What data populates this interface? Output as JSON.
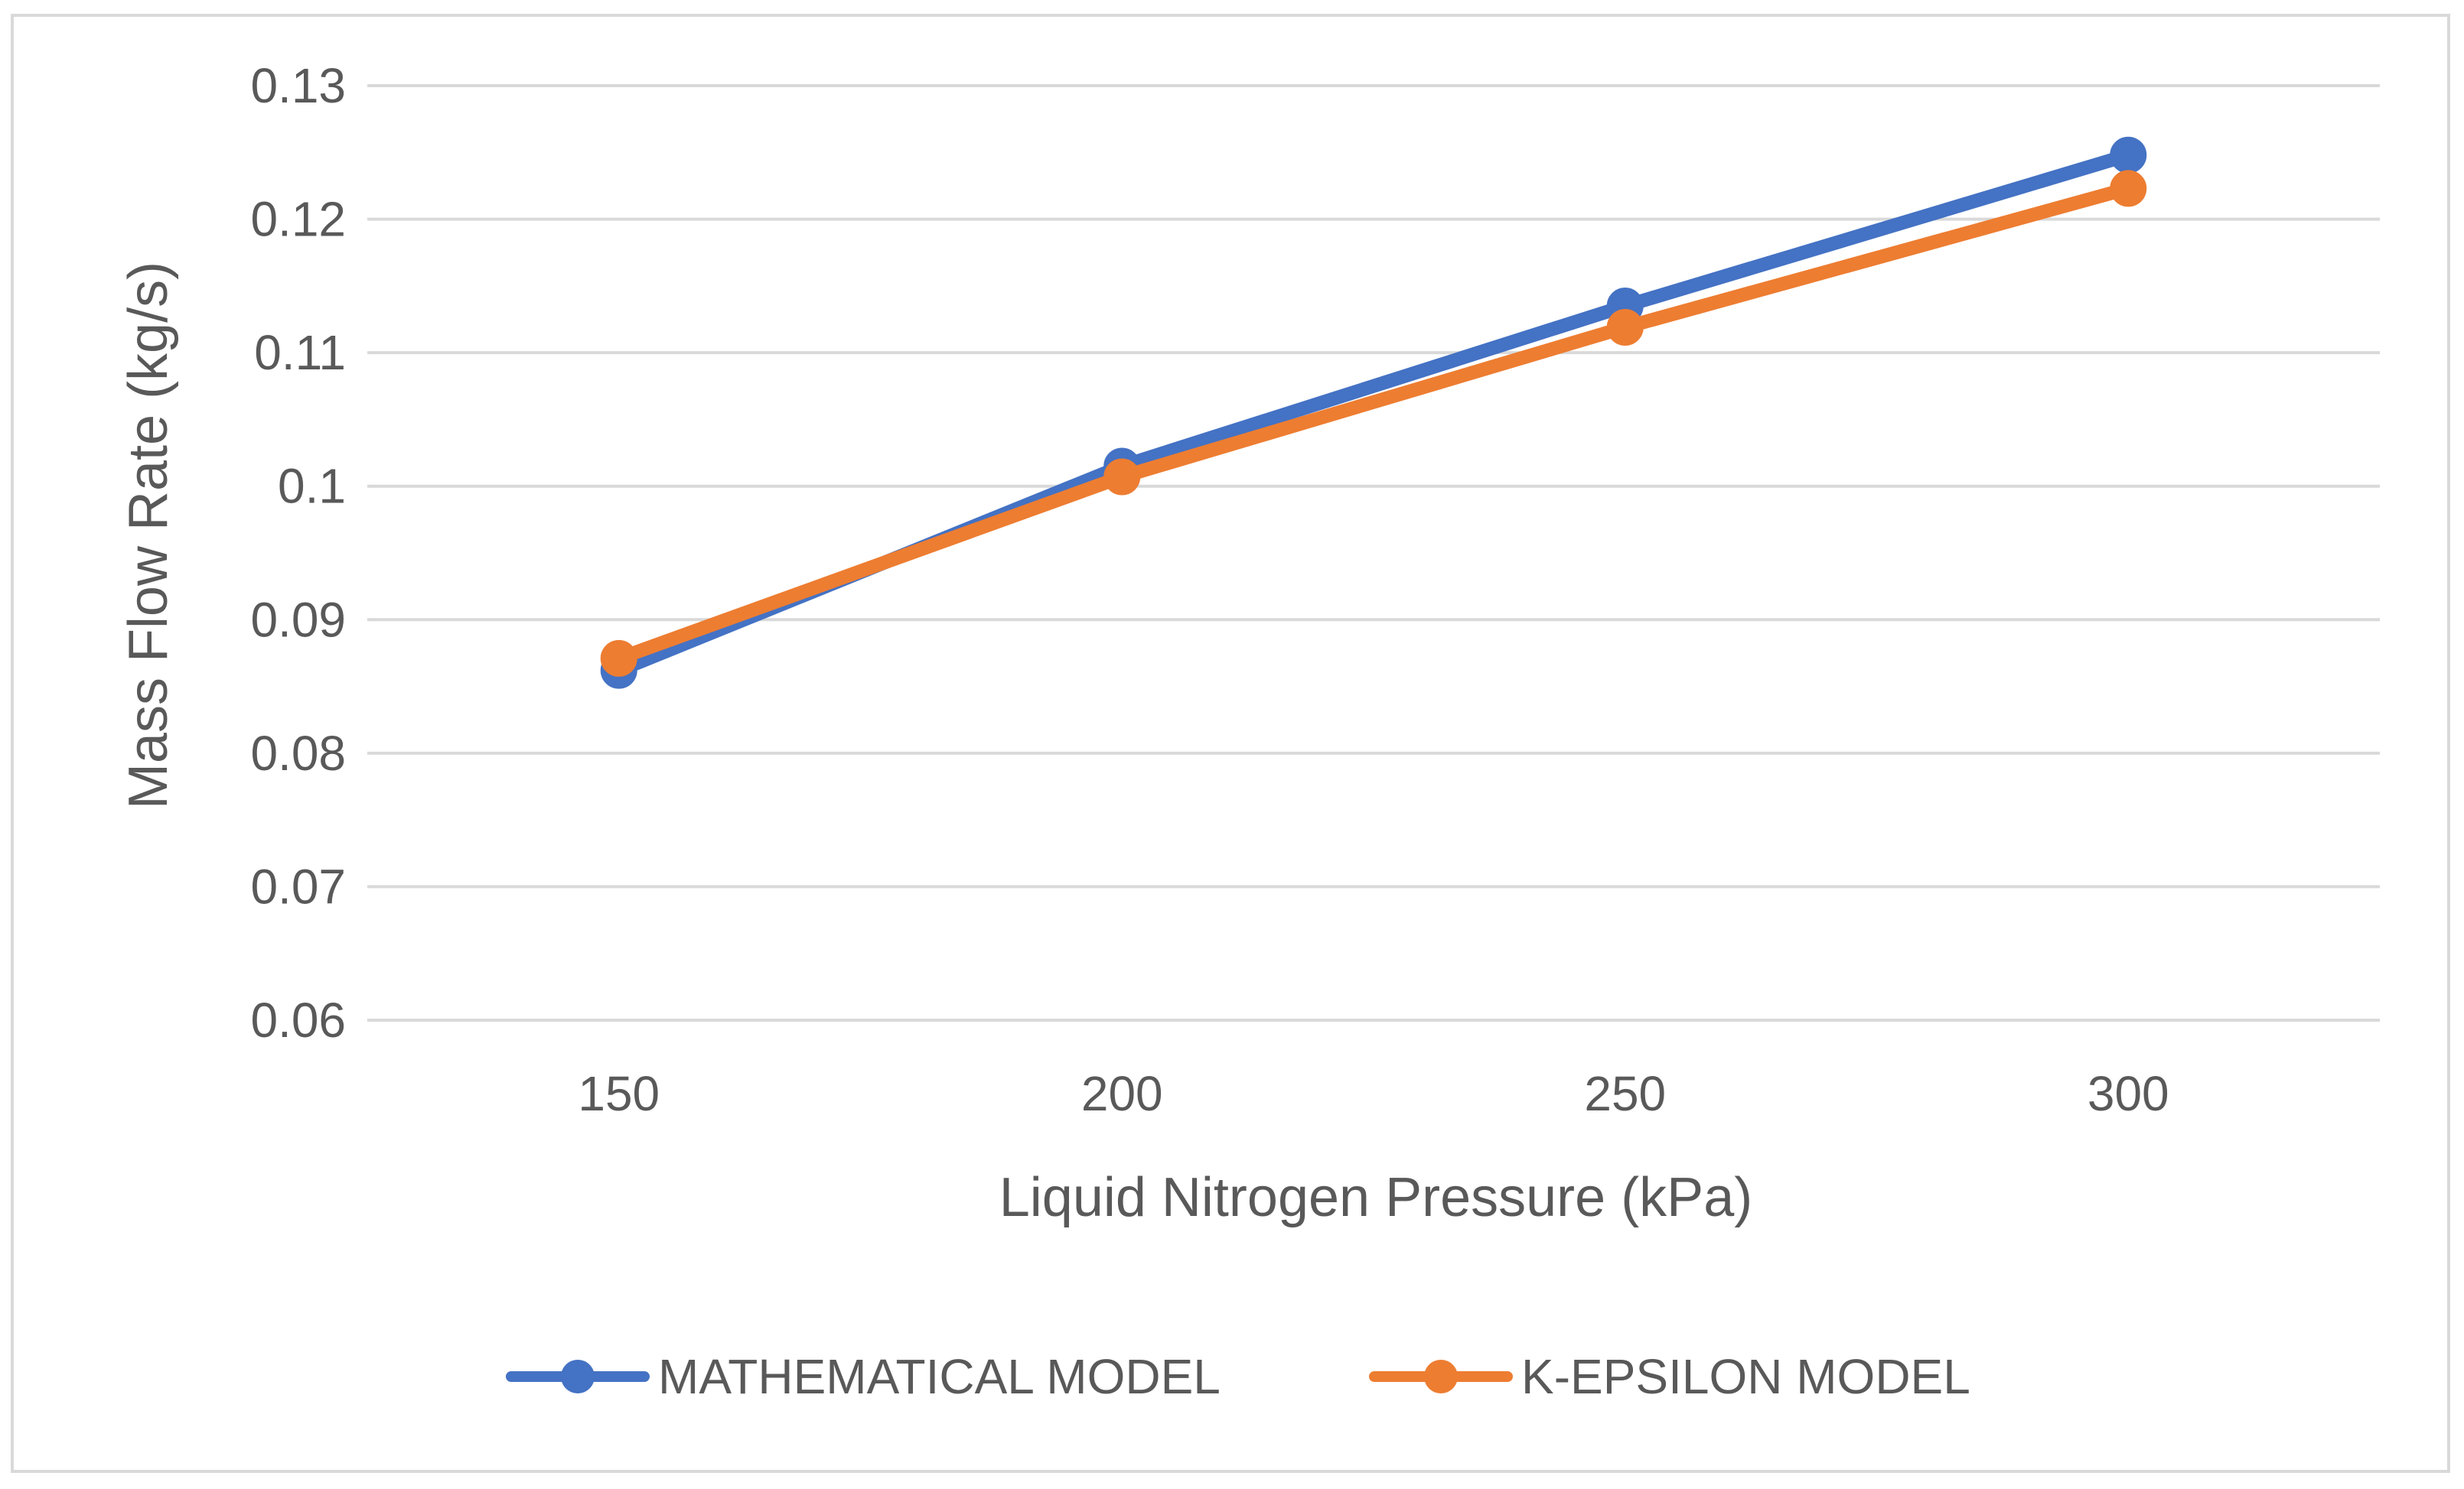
{
  "chart_data": {
    "type": "line",
    "title": "",
    "xlabel": "Liquid Nitrogen Pressure (kPa)",
    "ylabel": "Mass Flow Rate (kg/s)",
    "categories": [
      "150",
      "200",
      "250",
      "300"
    ],
    "ylim": [
      0.06,
      0.13
    ],
    "y_ticks": [
      "0.06",
      "0.07",
      "0.08",
      "0.09",
      "0.1",
      "0.11",
      "0.12",
      "0.13"
    ],
    "y_tick_values": [
      0.06,
      0.07,
      0.08,
      0.09,
      0.1,
      0.11,
      0.12,
      0.13
    ],
    "grid": true,
    "legend_position": "bottom",
    "series": [
      {
        "name": "MATHEMATICAL MODEL",
        "color": "#4472C4",
        "values": [
          0.0862,
          0.1015,
          0.1135,
          0.1248
        ]
      },
      {
        "name": "K-EPSILON MODEL",
        "color": "#ED7D31",
        "values": [
          0.0871,
          0.1007,
          0.1119,
          0.1223
        ]
      }
    ]
  }
}
